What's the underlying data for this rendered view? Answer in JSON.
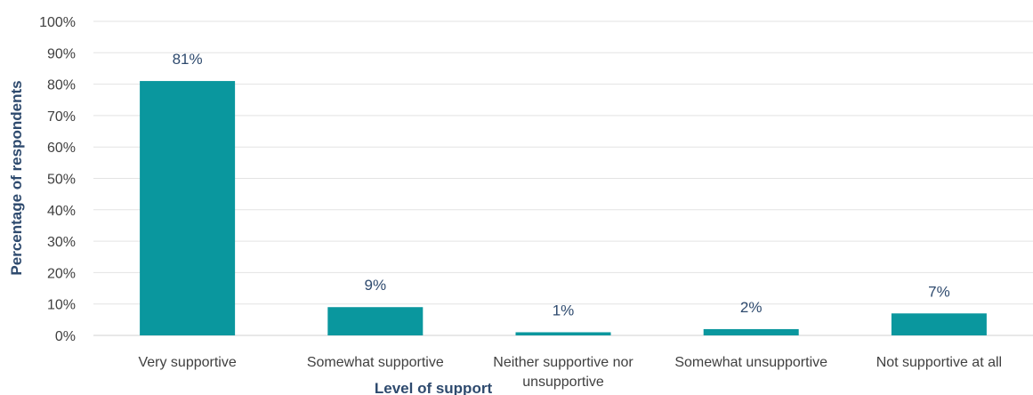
{
  "chart_data": {
    "type": "bar",
    "categories": [
      "Very supportive",
      "Somewhat supportive",
      "Neither supportive nor unsupportive",
      "Somewhat unsupportive",
      "Not supportive at all"
    ],
    "category_lines": [
      [
        "Very supportive"
      ],
      [
        "Somewhat supportive"
      ],
      [
        "Neither supportive nor",
        "unsupportive"
      ],
      [
        "Somewhat unsupportive"
      ],
      [
        "Not supportive at all"
      ]
    ],
    "values": [
      81,
      9,
      1,
      2,
      7
    ],
    "data_labels": [
      "81%",
      "9%",
      "1%",
      "2%",
      "7%"
    ],
    "title": "",
    "xlabel": "Level of support",
    "ylabel": "Percentage of respondents",
    "ylim": [
      0,
      100
    ],
    "yticks": [
      0,
      10,
      20,
      30,
      40,
      50,
      60,
      70,
      80,
      90,
      100
    ],
    "ytick_labels": [
      "0%",
      "10%",
      "20%",
      "30%",
      "40%",
      "50%",
      "60%",
      "70%",
      "80%",
      "90%",
      "100%"
    ],
    "grid": true,
    "legend": "none",
    "bar_color": "#0a979e"
  }
}
